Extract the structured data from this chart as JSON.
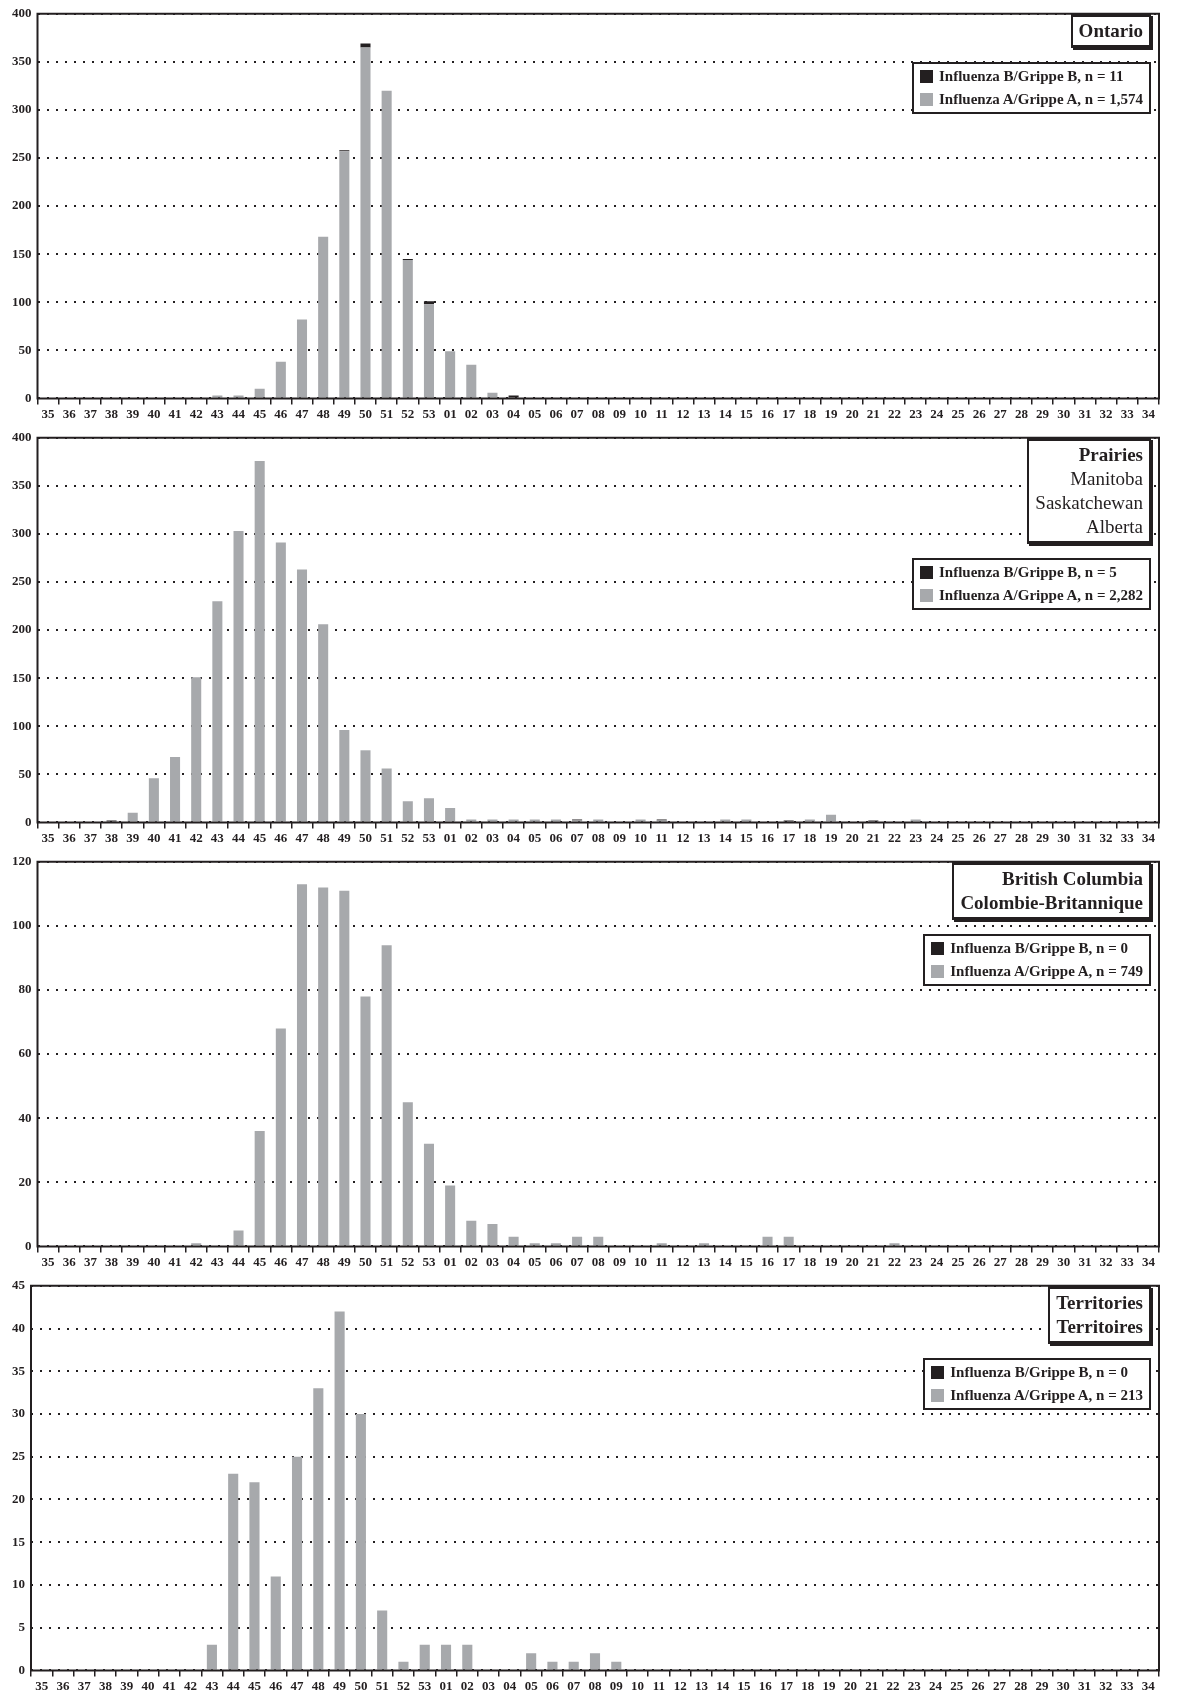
{
  "chart_data": [
    {
      "type": "bar",
      "title": "Ontario",
      "stacked": true,
      "legend": "top right",
      "grid": "y",
      "ylim": [
        0,
        400
      ],
      "yticks": [
        0,
        50,
        100,
        150,
        200,
        250,
        300,
        350,
        400
      ],
      "categories": [
        "35",
        "36",
        "37",
        "38",
        "39",
        "40",
        "41",
        "42",
        "43",
        "44",
        "45",
        "46",
        "47",
        "48",
        "49",
        "50",
        "51",
        "52",
        "53",
        "01",
        "02",
        "03",
        "04",
        "05",
        "06",
        "07",
        "08",
        "09",
        "10",
        "11",
        "12",
        "13",
        "14",
        "15",
        "16",
        "17",
        "18",
        "19",
        "20",
        "21",
        "22",
        "23",
        "24",
        "25",
        "26",
        "27",
        "28",
        "29",
        "30",
        "31",
        "32",
        "33",
        "34"
      ],
      "series": [
        {
          "name": "Influenza A/Grippe A, n = 1,574",
          "color": "#a7a9ac",
          "values": [
            1,
            0,
            0,
            0,
            0,
            0,
            0,
            0,
            3,
            3,
            10,
            38,
            82,
            168,
            257,
            365,
            320,
            144,
            98,
            49,
            35,
            6,
            1,
            1,
            0,
            0,
            0,
            0,
            0,
            1,
            0,
            0,
            1,
            0,
            0,
            0,
            0,
            0,
            0,
            0,
            0,
            0,
            0,
            0,
            0,
            0,
            0,
            0,
            0,
            0,
            0,
            0,
            0
          ]
        },
        {
          "name": "Influenza B/Grippe B, n = 11",
          "color": "#231f20",
          "values": [
            0,
            0,
            0,
            0,
            0,
            0,
            0,
            0,
            0,
            0,
            0,
            0,
            0,
            0,
            1,
            4,
            0,
            1,
            3,
            0,
            0,
            0,
            2,
            0,
            0,
            0,
            0,
            0,
            0,
            0,
            0,
            0,
            0,
            0,
            0,
            0,
            0,
            0,
            0,
            0,
            0,
            0,
            0,
            0,
            0,
            0,
            0,
            0,
            0,
            0,
            0,
            0,
            0
          ]
        }
      ]
    },
    {
      "type": "bar",
      "title": "Prairies",
      "subtitle": "Manitoba\nSaskatchewan\nAlberta",
      "stacked": true,
      "legend": "top right",
      "grid": "y",
      "ylim": [
        0,
        400
      ],
      "yticks": [
        0,
        50,
        100,
        150,
        200,
        250,
        300,
        350,
        400
      ],
      "categories": [
        "35",
        "36",
        "37",
        "38",
        "39",
        "40",
        "41",
        "42",
        "43",
        "44",
        "45",
        "46",
        "47",
        "48",
        "49",
        "50",
        "51",
        "52",
        "53",
        "01",
        "02",
        "03",
        "04",
        "05",
        "06",
        "07",
        "08",
        "09",
        "10",
        "11",
        "12",
        "13",
        "14",
        "15",
        "16",
        "17",
        "18",
        "19",
        "20",
        "21",
        "22",
        "23",
        "24",
        "25",
        "26",
        "27",
        "28",
        "29",
        "30",
        "31",
        "32",
        "33",
        "34"
      ],
      "series": [
        {
          "name": "Influenza A/Grippe A, n = 2,282",
          "color": "#a7a9ac",
          "values": [
            0,
            0,
            1,
            1,
            10,
            46,
            68,
            151,
            230,
            303,
            376,
            291,
            263,
            206,
            96,
            75,
            56,
            22,
            25,
            15,
            3,
            3,
            3,
            3,
            3,
            2,
            3,
            1,
            3,
            2,
            0,
            0,
            3,
            3,
            0,
            1,
            3,
            8,
            1,
            1,
            1,
            3,
            0,
            1,
            0,
            0,
            0,
            0,
            0,
            0,
            0,
            0,
            0
          ]
        },
        {
          "name": "Influenza B/Grippe B, n = 5",
          "color": "#231f20",
          "values": [
            0,
            0,
            0,
            1,
            0,
            0,
            0,
            0,
            0,
            0,
            0,
            0,
            0,
            0,
            0,
            0,
            0,
            0,
            0,
            0,
            0,
            0,
            0,
            0,
            0,
            1,
            0,
            0,
            0,
            1,
            0,
            0,
            0,
            0,
            0,
            1,
            0,
            0,
            0,
            1,
            0,
            0,
            0,
            0,
            0,
            0,
            0,
            0,
            0,
            0,
            0,
            0,
            0
          ]
        }
      ]
    },
    {
      "type": "bar",
      "title": "British Columbia\nColombie-Britannique",
      "stacked": true,
      "legend": "top right",
      "grid": "y",
      "ylim": [
        0,
        120
      ],
      "yticks": [
        0,
        20,
        40,
        60,
        80,
        100,
        120
      ],
      "categories": [
        "35",
        "36",
        "37",
        "38",
        "39",
        "40",
        "41",
        "42",
        "43",
        "44",
        "45",
        "46",
        "47",
        "48",
        "49",
        "50",
        "51",
        "52",
        "53",
        "01",
        "02",
        "03",
        "04",
        "05",
        "06",
        "07",
        "08",
        "09",
        "10",
        "11",
        "12",
        "13",
        "14",
        "15",
        "16",
        "17",
        "18",
        "19",
        "20",
        "21",
        "22",
        "23",
        "24",
        "25",
        "26",
        "27",
        "28",
        "29",
        "30",
        "31",
        "32",
        "33",
        "34"
      ],
      "series": [
        {
          "name": "Influenza A/Grippe A, n = 749",
          "color": "#a7a9ac",
          "values": [
            0,
            0,
            0,
            0,
            0,
            0,
            0,
            1,
            0,
            5,
            36,
            68,
            113,
            112,
            111,
            78,
            94,
            45,
            32,
            19,
            8,
            7,
            3,
            1,
            1,
            3,
            3,
            0,
            0,
            1,
            0,
            1,
            0,
            0,
            3,
            3,
            0,
            0,
            0,
            0,
            1,
            0,
            0,
            0,
            0,
            0,
            0,
            0,
            0,
            0,
            0,
            0,
            0
          ]
        },
        {
          "name": "Influenza B/Grippe B, n = 0",
          "color": "#231f20",
          "values": [
            0,
            0,
            0,
            0,
            0,
            0,
            0,
            0,
            0,
            0,
            0,
            0,
            0,
            0,
            0,
            0,
            0,
            0,
            0,
            0,
            0,
            0,
            0,
            0,
            0,
            0,
            0,
            0,
            0,
            0,
            0,
            0,
            0,
            0,
            0,
            0,
            0,
            0,
            0,
            0,
            0,
            0,
            0,
            0,
            0,
            0,
            0,
            0,
            0,
            0,
            0,
            0,
            0
          ]
        }
      ]
    },
    {
      "type": "bar",
      "title": "Territories\nTerritoires",
      "stacked": true,
      "legend": "top right",
      "grid": "y",
      "ylim": [
        0,
        45
      ],
      "yticks": [
        0,
        5,
        10,
        15,
        20,
        25,
        30,
        35,
        40,
        45
      ],
      "categories": [
        "35",
        "36",
        "37",
        "38",
        "39",
        "40",
        "41",
        "42",
        "43",
        "44",
        "45",
        "46",
        "47",
        "48",
        "49",
        "50",
        "51",
        "52",
        "53",
        "01",
        "02",
        "03",
        "04",
        "05",
        "06",
        "07",
        "08",
        "09",
        "10",
        "11",
        "12",
        "13",
        "14",
        "15",
        "16",
        "17",
        "18",
        "19",
        "20",
        "21",
        "22",
        "23",
        "24",
        "25",
        "26",
        "27",
        "28",
        "29",
        "30",
        "31",
        "32",
        "33",
        "34"
      ],
      "series": [
        {
          "name": "Influenza A/Grippe A, n = 213",
          "color": "#a7a9ac",
          "values": [
            0,
            0,
            0,
            0,
            0,
            0,
            0,
            0,
            3,
            23,
            22,
            11,
            25,
            33,
            42,
            30,
            7,
            1,
            3,
            3,
            3,
            0,
            0,
            2,
            1,
            1,
            2,
            1,
            0,
            0,
            0,
            0,
            0,
            0,
            0,
            0,
            0,
            0,
            0,
            0,
            0,
            0,
            0,
            0,
            0,
            0,
            0,
            0,
            0,
            0,
            0,
            0,
            0
          ]
        },
        {
          "name": "Influenza B/Grippe B, n = 0",
          "color": "#231f20",
          "values": [
            0,
            0,
            0,
            0,
            0,
            0,
            0,
            0,
            0,
            0,
            0,
            0,
            0,
            0,
            0,
            0,
            0,
            0,
            0,
            0,
            0,
            0,
            0,
            0,
            0,
            0,
            0,
            0,
            0,
            0,
            0,
            0,
            0,
            0,
            0,
            0,
            0,
            0,
            0,
            0,
            0,
            0,
            0,
            0,
            0,
            0,
            0,
            0,
            0,
            0,
            0,
            0,
            0
          ]
        }
      ]
    }
  ]
}
